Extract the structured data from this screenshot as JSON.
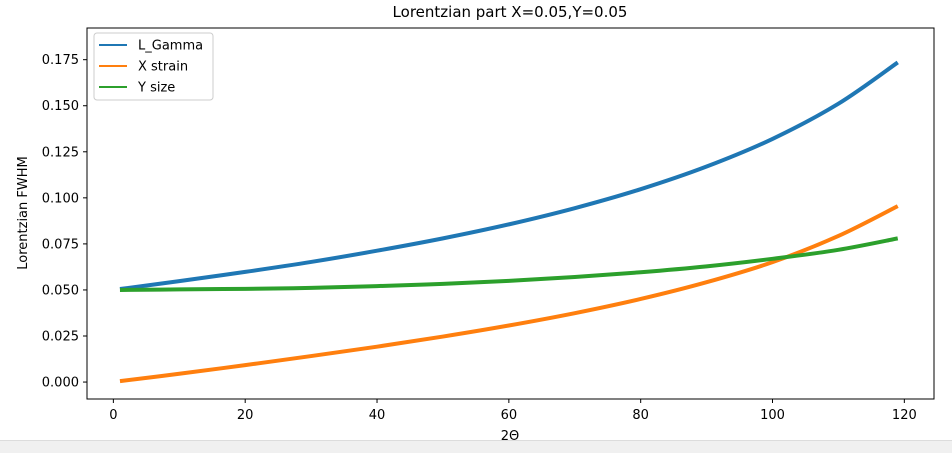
{
  "chart_data": {
    "type": "line",
    "title": "Lorentzian part X=0.05,Y=0.05",
    "xlabel": "2Θ",
    "ylabel": "Lorentzian FWHM",
    "xlim": [
      -4.0,
      124.5
    ],
    "ylim": [
      -0.0092,
      0.1922
    ],
    "xticks": [
      0,
      20,
      40,
      60,
      80,
      100,
      120
    ],
    "yticks": [
      0.0,
      0.025,
      0.05,
      0.075,
      0.1,
      0.125,
      0.15,
      0.175
    ],
    "xtick_labels": [
      "0",
      "20",
      "40",
      "60",
      "80",
      "100",
      "120"
    ],
    "ytick_labels": [
      "0.000",
      "0.025",
      "0.050",
      "0.075",
      "0.100",
      "0.125",
      "0.150",
      "0.175"
    ],
    "grid": false,
    "legend_position": "top-left",
    "x": [
      1,
      10,
      20,
      30,
      40,
      50,
      60,
      70,
      80,
      90,
      100,
      110,
      119
    ],
    "series": [
      {
        "name": "L_Gamma",
        "color": "#1f77b4",
        "values": [
          0.0505,
          0.0548,
          0.0598,
          0.0652,
          0.0713,
          0.078,
          0.0856,
          0.0944,
          0.1047,
          0.117,
          0.132,
          0.1511,
          0.1735
        ]
      },
      {
        "name": "X strain",
        "color": "#ff7f0e",
        "values": [
          0.0005,
          0.0045,
          0.0092,
          0.0141,
          0.0192,
          0.0247,
          0.0307,
          0.0374,
          0.0451,
          0.0542,
          0.0651,
          0.0793,
          0.0955
        ]
      },
      {
        "name": "Y size",
        "color": "#2ca02c",
        "values": [
          0.05,
          0.0503,
          0.0506,
          0.0511,
          0.0521,
          0.0533,
          0.0549,
          0.057,
          0.0596,
          0.0628,
          0.0669,
          0.0718,
          0.078
        ]
      }
    ]
  }
}
